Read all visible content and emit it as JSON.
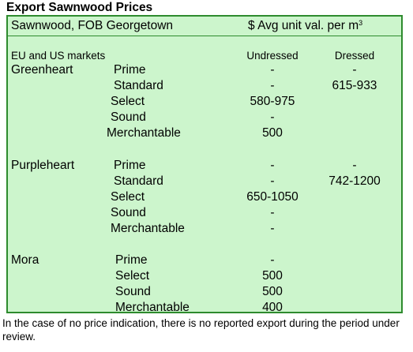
{
  "title": "Export Sawnwood Prices",
  "header": {
    "left": "Sawnwood, FOB Georgetown",
    "right": "$ Avg unit val. per m",
    "right_sup": "3"
  },
  "subheader": {
    "markets": "EU and US markets",
    "undressed": "Undressed",
    "dressed": "Dressed"
  },
  "species": [
    {
      "name": "Greenheart",
      "rows": [
        {
          "grade": "Prime",
          "undressed": "-",
          "dressed": "-"
        },
        {
          "grade": "Standard",
          "undressed": "-",
          "dressed": "615-933"
        },
        {
          "grade": "Select",
          "undressed": "580-975",
          "dressed": ""
        },
        {
          "grade": "Sound",
          "undressed": "-",
          "dressed": ""
        },
        {
          "grade": "Merchantable",
          "undressed": "500",
          "dressed": ""
        }
      ]
    },
    {
      "name": "Purpleheart",
      "rows": [
        {
          "grade": "Prime",
          "undressed": "-",
          "dressed": "-"
        },
        {
          "grade": "Standard",
          "undressed": "-",
          "dressed": "742-1200"
        },
        {
          "grade": "Select",
          "undressed": "650-1050",
          "dressed": ""
        },
        {
          "grade": "Sound",
          "undressed": "-",
          "dressed": ""
        },
        {
          "grade": "Merchantable",
          "undressed": "-",
          "dressed": ""
        }
      ]
    },
    {
      "name": "Mora",
      "rows": [
        {
          "grade": "Prime",
          "undressed": "-",
          "dressed": ""
        },
        {
          "grade": "Select",
          "undressed": "500",
          "dressed": ""
        },
        {
          "grade": "Sound",
          "undressed": "500",
          "dressed": ""
        },
        {
          "grade": "Merchantable",
          "undressed": "400",
          "dressed": ""
        }
      ]
    }
  ],
  "footer": "In the case of no price indication, there is no reported export during the period under review."
}
